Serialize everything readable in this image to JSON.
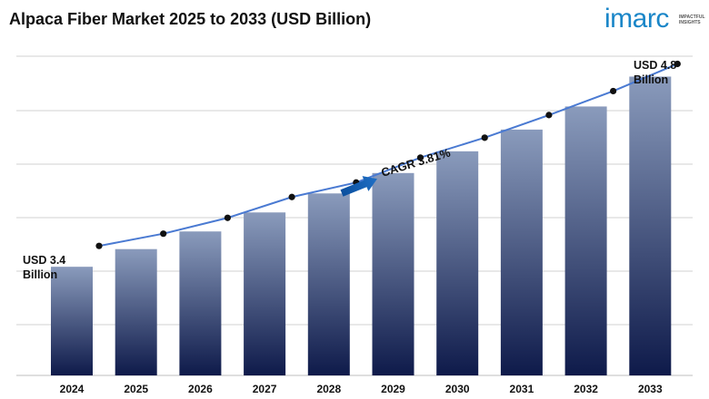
{
  "title": "Alpaca Fiber Market 2025 to 2033 (USD Billion)",
  "logo": {
    "word": "imarc",
    "tagline": "IMPACTFUL INSIGHTS"
  },
  "chart_data": {
    "type": "bar",
    "categories": [
      "2024",
      "2025",
      "2026",
      "2027",
      "2028",
      "2029",
      "2030",
      "2031",
      "2032",
      "2033"
    ],
    "values": [
      3.4,
      3.53,
      3.66,
      3.8,
      3.94,
      4.09,
      4.25,
      4.41,
      4.58,
      4.8
    ],
    "trend_line_values": [
      3.4,
      3.53,
      3.66,
      3.8,
      3.94,
      4.09,
      4.25,
      4.41,
      4.58,
      4.8
    ],
    "ylim": [
      2.6,
      4.95
    ],
    "grid": true,
    "annotations": {
      "start": [
        "USD 3.4",
        "Billion"
      ],
      "end": [
        "USD 4.8",
        "Billion"
      ],
      "cagr": "CAGR 3.81%"
    },
    "colors": {
      "bar_top": "#8a9bbc",
      "bar_bottom": "#0e1a4a",
      "line": "#4a7ad2",
      "marker": "#111111",
      "arrow": "#1f6fc5",
      "grid": "#d0d0d0"
    }
  }
}
